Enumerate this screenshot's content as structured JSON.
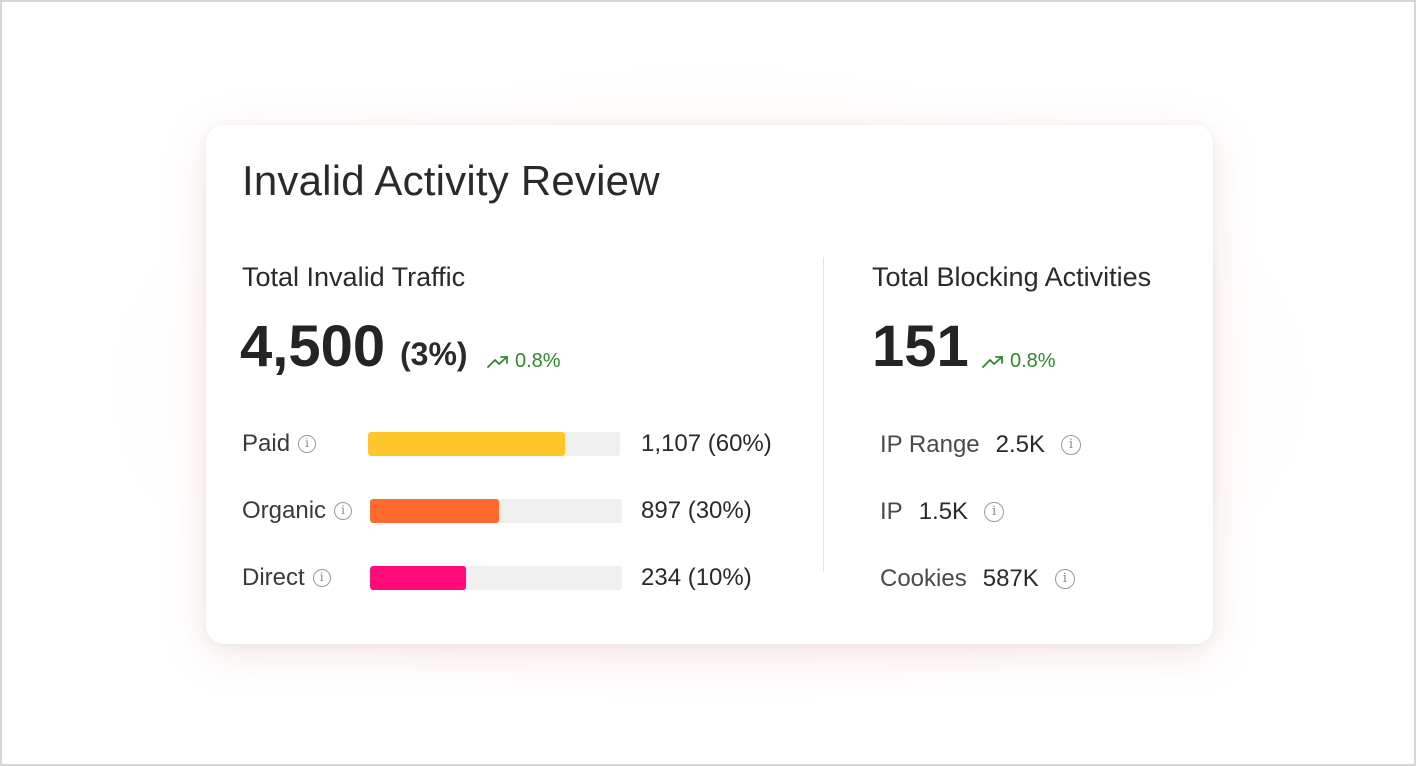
{
  "card": {
    "title": "Invalid Activity Review"
  },
  "traffic": {
    "title": "Total Invalid Traffic",
    "total": "4,500",
    "total_pct": "(3%)",
    "trend": "0.8%",
    "rows": [
      {
        "label": "Paid",
        "value": "1,107 (60%)",
        "fill_pct": 78,
        "color": "#FFC629"
      },
      {
        "label": "Organic",
        "value": "897 (30%)",
        "fill_pct": 51,
        "color": "#FF6B2C"
      },
      {
        "label": "Direct",
        "value": "234 (10%)",
        "fill_pct": 38,
        "color": "#FF0A78"
      }
    ],
    "track_color": "#EFEFEF"
  },
  "blocking": {
    "title": "Total Blocking Activities",
    "total": "151",
    "trend": "0.8%",
    "rows": [
      {
        "label": "IP Range",
        "value": "2.5K"
      },
      {
        "label": "IP",
        "value": "1.5K"
      },
      {
        "label": "Cookies",
        "value": "587K"
      }
    ]
  },
  "icons": {
    "trend": "trending-up-icon",
    "info": "info-icon",
    "info_glyph": "i"
  },
  "colors": {
    "trend_green": "#2F8A2A",
    "text": "#2A2A2A"
  }
}
